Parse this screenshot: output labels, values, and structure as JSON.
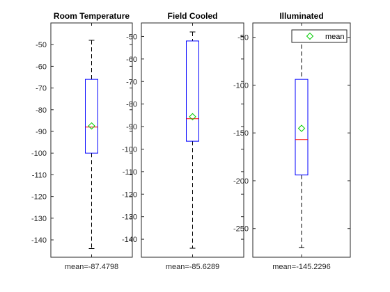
{
  "chart_data": [
    {
      "type": "box",
      "title": "Room Temperature",
      "ylim": [
        -148,
        -40
      ],
      "yticks": [
        -50,
        -60,
        -70,
        -80,
        -90,
        -100,
        -110,
        -120,
        -130,
        -140
      ],
      "box": {
        "whisker_high": -48,
        "q3": -66,
        "median": -88,
        "q1": -100,
        "whisker_low": -144,
        "mean": -87.4798
      },
      "mean_label": "mean=-87.4798",
      "grid": false
    },
    {
      "type": "box",
      "title": "Field Cooled",
      "ylim": [
        -148,
        -44
      ],
      "yticks": [
        -50,
        -60,
        -70,
        -80,
        -90,
        -100,
        -110,
        -120,
        -130,
        -140
      ],
      "box": {
        "whisker_high": -48,
        "q3": -52,
        "median": -86.5,
        "q1": -96.5,
        "whisker_low": -144,
        "mean": -85.6289
      },
      "mean_label": "mean=-85.6289",
      "grid": false
    },
    {
      "type": "box",
      "title": "Illuminated",
      "ylim": [
        -280,
        -35
      ],
      "yticks": [
        -50,
        -100,
        -150,
        -200,
        -250
      ],
      "box": {
        "whisker_high": -43,
        "q3": -94,
        "median": -157,
        "q1": -194,
        "whisker_low": -270,
        "mean": -145.2296
      },
      "mean_label": "mean=-145.2296",
      "legend": {
        "label": "mean",
        "position": "top-right"
      },
      "grid": false
    }
  ],
  "colors": {
    "box": "#0000ff",
    "median": "#ff0000",
    "mean_marker": "#00cc00",
    "whisker": "#000000",
    "axes": "#262626"
  }
}
